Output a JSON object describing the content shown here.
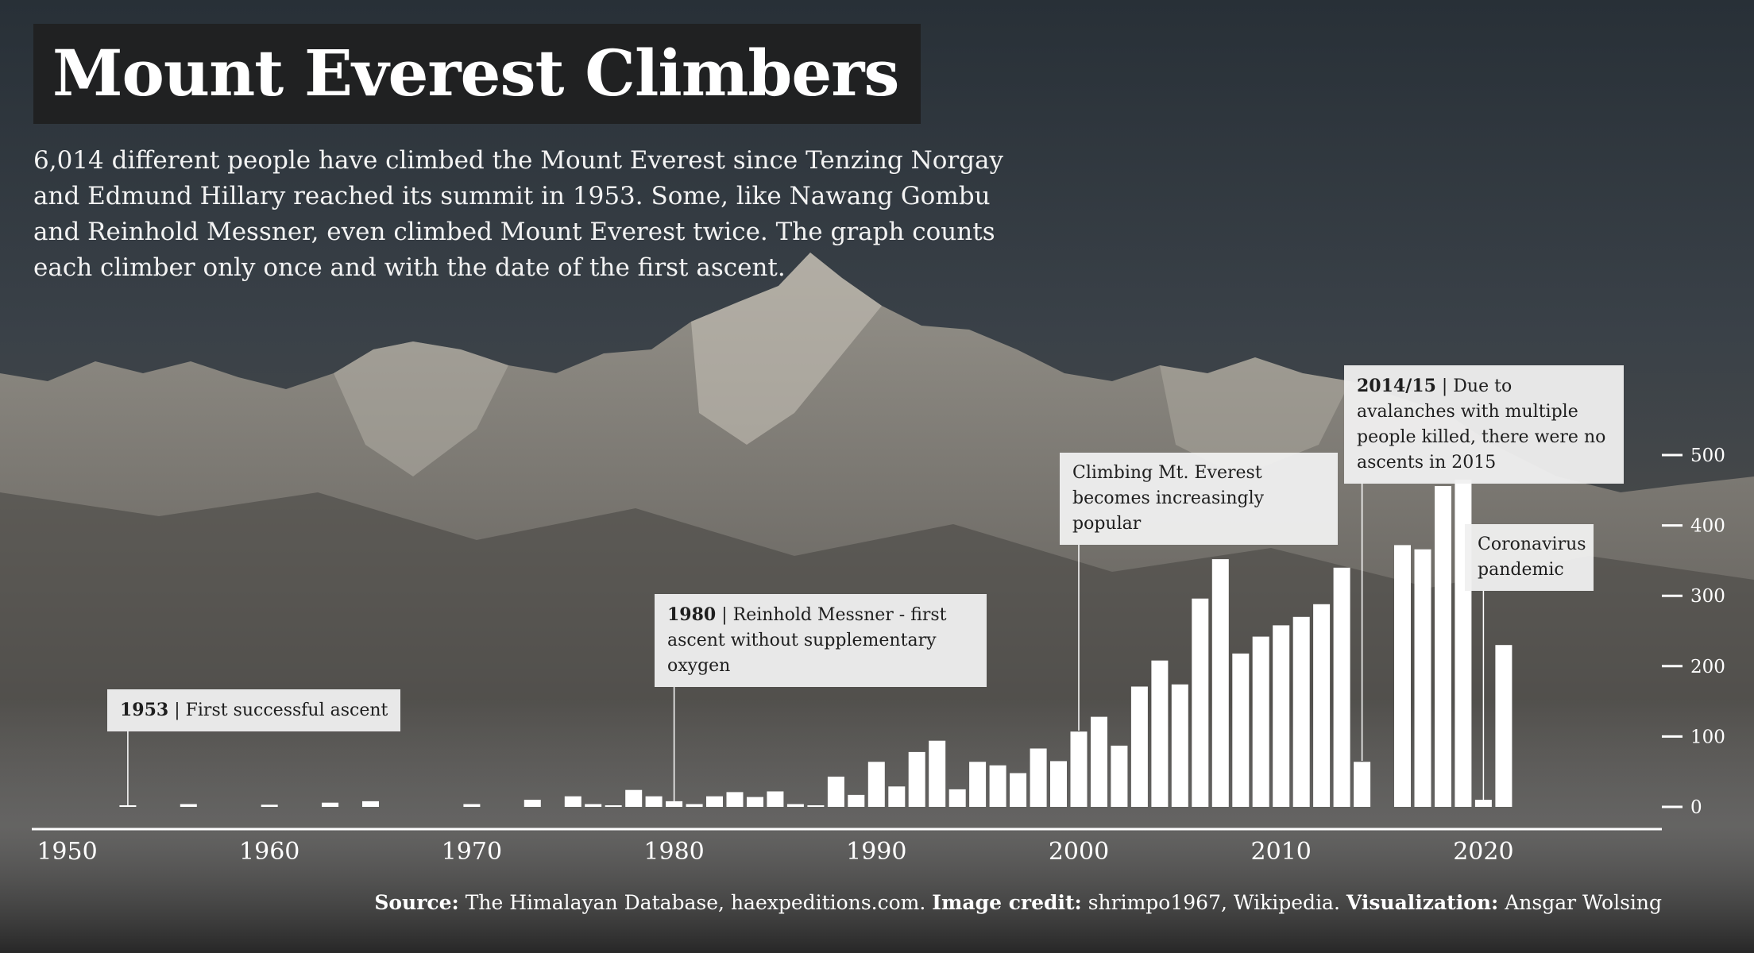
{
  "header": {
    "title": "Mount Everest Climbers",
    "subtitle": "6,014 different people have climbed the Mount Everest since Tenzing Norgay and Edmund Hillary reached its summit in 1953. Some, like Nawang Gombu and Reinhold Messner, even climbed Mount Everest twice. The graph counts each climber only once and with the date of the first ascent."
  },
  "caption": {
    "source_label": "Source:",
    "source_text": " The Himalayan Database, haexpeditions.com. ",
    "image_label": "Image credit:",
    "image_text": " shrimpo1967, Wikipedia. ",
    "viz_label": "Visualization:",
    "viz_text": " Ansgar Wolsing"
  },
  "annotations": [
    {
      "year_label": "1953",
      "text": " | First successful ascent",
      "year": 1953
    },
    {
      "year_label": "1980",
      "text": " | Reinhold Messner - first ascent without supplementary oxygen",
      "year": 1980
    },
    {
      "year_label": "",
      "text": "Climbing Mt. Everest becomes increasingly popular",
      "year": 2000
    },
    {
      "year_label": "2014/15",
      "text": " | Due to avalanches with multiple people killed, there were no ascents in 2015",
      "year": 2014
    },
    {
      "year_label": "",
      "text": "Coronavirus pandemic",
      "year": 2020
    }
  ],
  "colors": {
    "bar": "#ffffff",
    "annotation_bg": "#f0f0f0",
    "title_bg": "#202122",
    "text": "#ffffff"
  },
  "chart_data": {
    "type": "bar",
    "title": "Mount Everest Climbers",
    "xlabel": "",
    "ylabel": "",
    "xlim": [
      1948,
      2027
    ],
    "ylim": [
      0,
      500
    ],
    "x_ticks": [
      1950,
      1960,
      1970,
      1980,
      1990,
      2000,
      2010,
      2020
    ],
    "y_ticks": [
      0,
      100,
      200,
      300,
      400,
      500
    ],
    "y_axis_position": "right",
    "grid": false,
    "x": [
      1953,
      1956,
      1960,
      1963,
      1965,
      1970,
      1973,
      1975,
      1976,
      1977,
      1978,
      1979,
      1980,
      1981,
      1982,
      1983,
      1984,
      1985,
      1986,
      1987,
      1988,
      1989,
      1990,
      1991,
      1992,
      1993,
      1994,
      1995,
      1996,
      1997,
      1998,
      1999,
      2000,
      2001,
      2002,
      2003,
      2004,
      2005,
      2006,
      2007,
      2008,
      2009,
      2010,
      2011,
      2012,
      2013,
      2014,
      2016,
      2017,
      2018,
      2019,
      2020,
      2021
    ],
    "values": [
      2,
      4,
      3,
      6,
      8,
      4,
      10,
      15,
      4,
      2,
      24,
      15,
      8,
      4,
      15,
      21,
      14,
      22,
      4,
      1,
      43,
      17,
      64,
      29,
      78,
      94,
      25,
      64,
      59,
      48,
      83,
      65,
      107,
      128,
      87,
      171,
      208,
      174,
      296,
      352,
      218,
      242,
      258,
      270,
      288,
      340,
      64,
      372,
      366,
      456,
      465,
      10,
      230
    ]
  }
}
